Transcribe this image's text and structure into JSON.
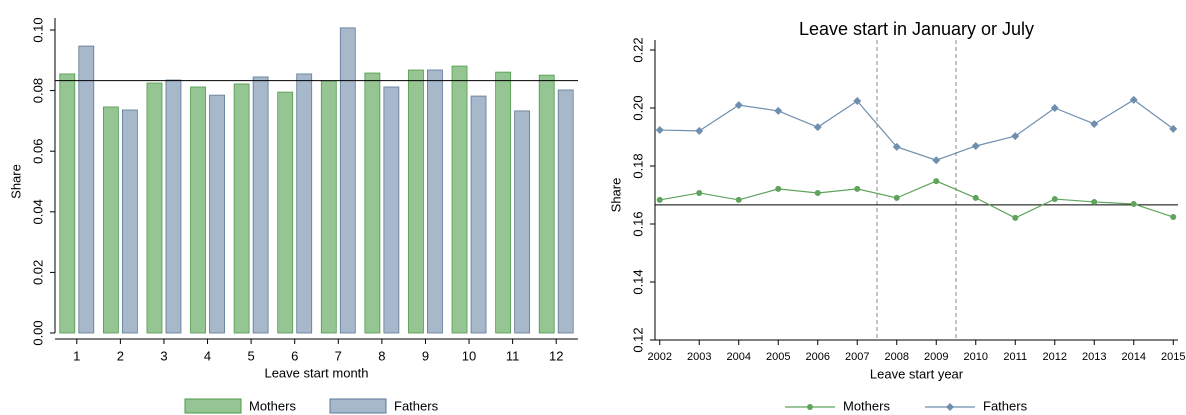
{
  "chart_data": [
    {
      "type": "bar",
      "y_label": "Share",
      "x_label": "Leave start month",
      "categories": [
        "1",
        "2",
        "3",
        "4",
        "5",
        "6",
        "7",
        "8",
        "9",
        "10",
        "11",
        "12"
      ],
      "series": [
        {
          "name": "Mothers",
          "color": "#95c592",
          "values": [
            0.0855,
            0.0746,
            0.0825,
            0.0812,
            0.0822,
            0.0795,
            0.0832,
            0.0858,
            0.0868,
            0.0881,
            0.0861,
            0.0851
          ]
        },
        {
          "name": "Fathers",
          "color": "#a8b8cb",
          "values": [
            0.0947,
            0.0736,
            0.0835,
            0.0785,
            0.0845,
            0.0855,
            0.1007,
            0.0812,
            0.0868,
            0.0782,
            0.0733,
            0.0802
          ]
        }
      ],
      "ylim": [
        0,
        0.1
      ],
      "yticks": [
        {
          "value": 0,
          "label": "0.00"
        },
        {
          "value": 0.02,
          "label": "0.02"
        },
        {
          "value": 0.04,
          "label": "0.04"
        },
        {
          "value": 0.06,
          "label": "0.06"
        },
        {
          "value": 0.08,
          "label": "0.08"
        },
        {
          "value": 0.1,
          "label": "0.10"
        }
      ],
      "hline": 0.0833
    },
    {
      "type": "line",
      "title": "Leave start in January or July",
      "y_label": "Share",
      "x_label": "Leave start year",
      "x": [
        2002,
        2003,
        2004,
        2005,
        2006,
        2007,
        2008,
        2009,
        2010,
        2011,
        2012,
        2013,
        2014,
        2015
      ],
      "series": [
        {
          "name": "Mothers",
          "color": "#5fa35c",
          "values": [
            0.1683,
            0.1707,
            0.1683,
            0.1721,
            0.1707,
            0.1721,
            0.169,
            0.1748,
            0.169,
            0.1621,
            0.1686,
            0.1676,
            0.1669,
            0.1624
          ]
        },
        {
          "name": "Fathers",
          "color": "#6f8fae",
          "values": [
            0.1924,
            0.1921,
            0.201,
            0.199,
            0.1934,
            0.2024,
            0.1866,
            0.182,
            0.1869,
            0.1903,
            0.2,
            0.1945,
            0.2028,
            0.1928
          ]
        }
      ],
      "xlim": [
        2001.88,
        2015.12
      ],
      "xticks": [
        2002,
        2003,
        2004,
        2005,
        2006,
        2007,
        2008,
        2009,
        2010,
        2011,
        2012,
        2013,
        2014,
        2015
      ],
      "ylim": [
        0.12,
        0.22
      ],
      "yticks": [
        {
          "value": 0.12,
          "label": "0.12"
        },
        {
          "value": 0.14,
          "label": "0.14"
        },
        {
          "value": 0.16,
          "label": "0.16"
        },
        {
          "value": 0.18,
          "label": "0.18"
        },
        {
          "value": 0.2,
          "label": "0.20"
        },
        {
          "value": 0.22,
          "label": "0.22"
        }
      ],
      "hline": 0.1666,
      "vlines": [
        2007.5,
        2009.5
      ]
    }
  ]
}
